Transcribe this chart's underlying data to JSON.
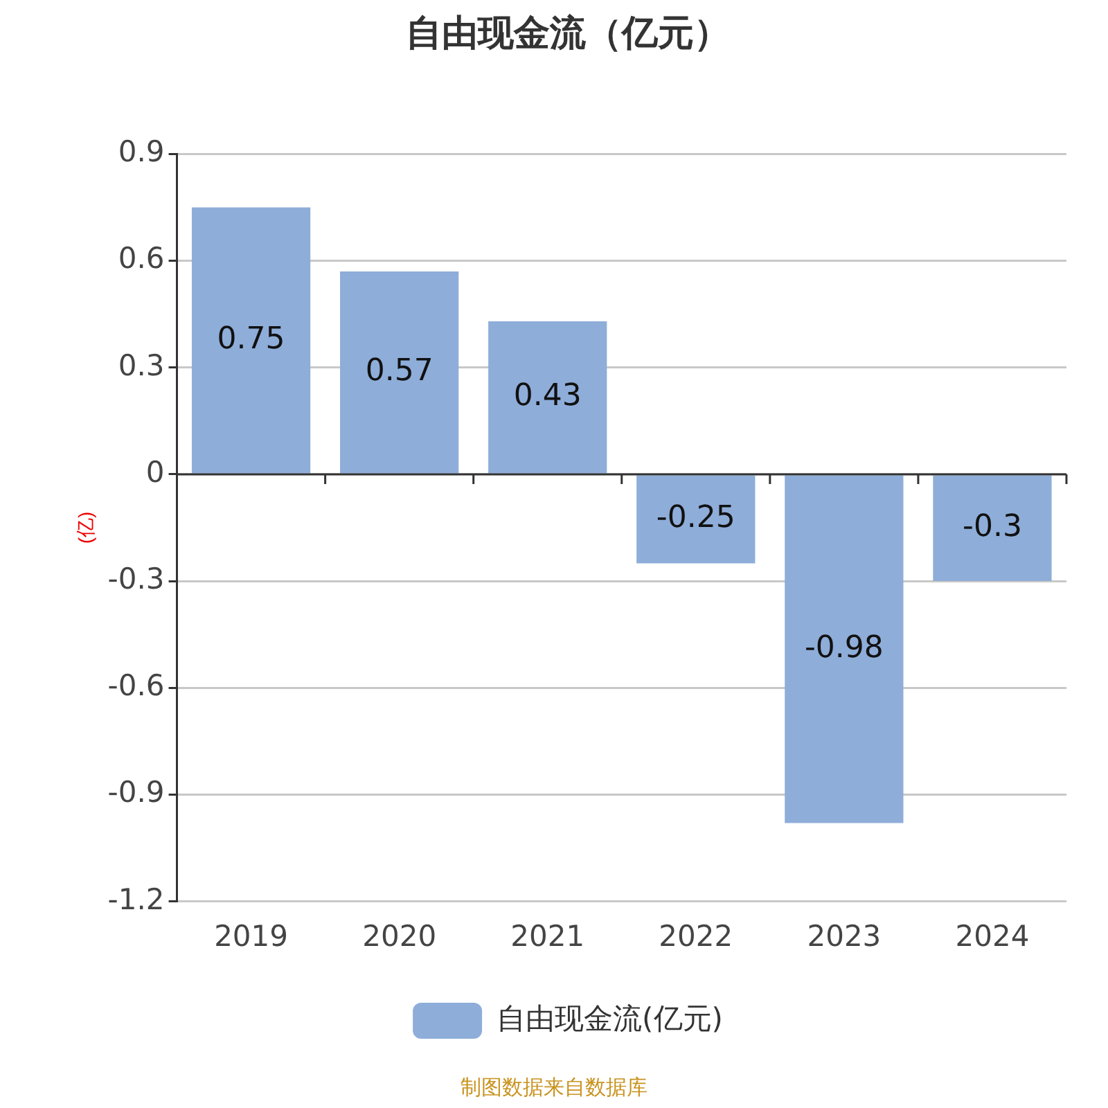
{
  "chart_data": {
    "type": "bar",
    "title": "自由现金流（亿元）",
    "ylabel": "(亿)",
    "categories": [
      "2019",
      "2020",
      "2021",
      "2022",
      "2023",
      "2024"
    ],
    "series": [
      {
        "name": "自由现金流(亿元)",
        "color": "#8eadd9",
        "values": [
          0.75,
          0.57,
          0.43,
          -0.25,
          -0.98,
          -0.3
        ]
      }
    ],
    "ylim": [
      -1.2,
      0.9
    ],
    "yticks": [
      -1.2,
      -0.9,
      -0.6,
      -0.3,
      0,
      0.3,
      0.6,
      0.9
    ],
    "grid": "y",
    "legend": "bottom",
    "data_labels": true,
    "annotations": [
      "制图数据来自数据库"
    ]
  }
}
